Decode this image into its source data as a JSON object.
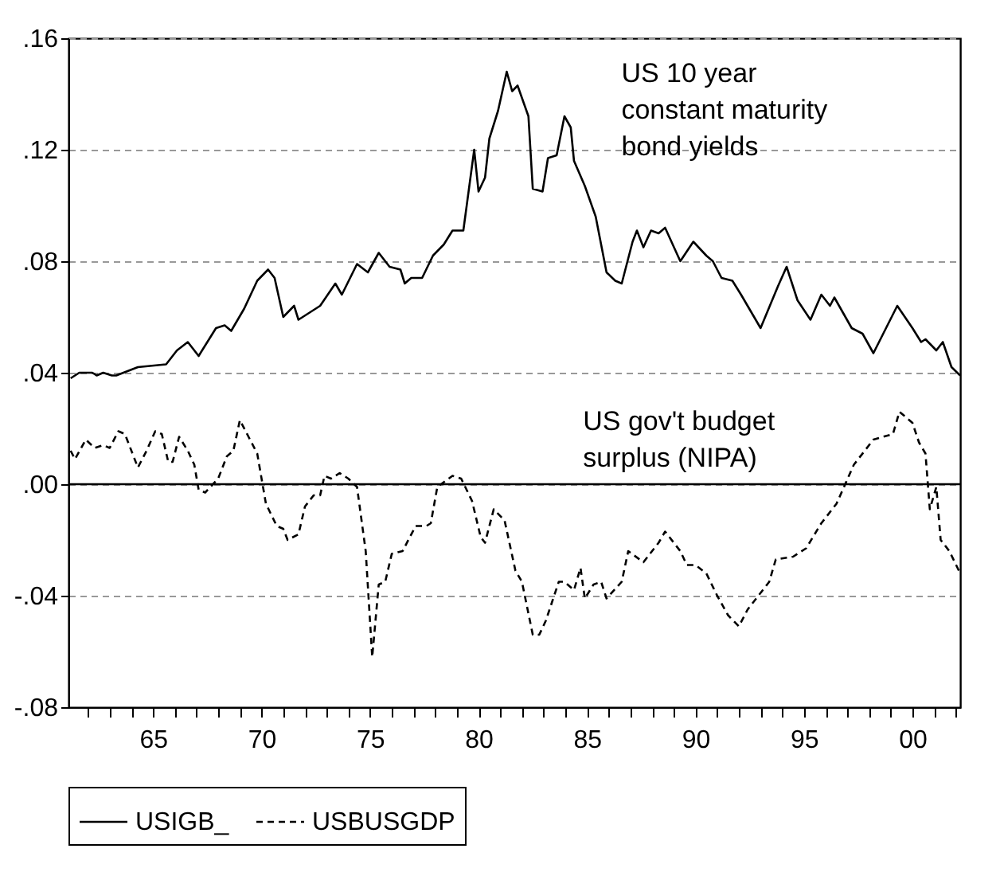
{
  "chart_data": {
    "type": "line",
    "series": [
      {
        "name": "USIGB_",
        "color": "#000000",
        "line_style": "solid",
        "x": [
          1961.2,
          1961.6,
          1962.2,
          1962.4,
          1962.7,
          1963.1,
          1963.3,
          1964.3,
          1965.6,
          1966.1,
          1966.6,
          1967.1,
          1967.9,
          1968.3,
          1968.6,
          1969.2,
          1969.8,
          1970.3,
          1970.6,
          1971.0,
          1971.5,
          1971.7,
          1972.7,
          1973.4,
          1973.7,
          1974.4,
          1974.9,
          1975.4,
          1975.9,
          1976.4,
          1976.6,
          1976.9,
          1977.4,
          1977.9,
          1978.4,
          1978.8,
          1979.3,
          1979.8,
          1980.0,
          1980.3,
          1980.5,
          1980.9,
          1981.3,
          1981.55,
          1981.8,
          1982.3,
          1982.5,
          1982.95,
          1983.2,
          1983.6,
          1983.96,
          1984.25,
          1984.4,
          1984.9,
          1985.4,
          1985.9,
          1986.3,
          1986.6,
          1987.1,
          1987.3,
          1987.6,
          1987.95,
          1988.3,
          1988.6,
          1989.3,
          1989.9,
          1990.5,
          1990.8,
          1991.2,
          1991.7,
          1992.1,
          1993.0,
          1993.8,
          1994.2,
          1994.7,
          1995.3,
          1995.8,
          1996.2,
          1996.4,
          1997.2,
          1997.7,
          1998.2,
          1999.3,
          2000.0,
          2000.4,
          2000.6,
          2001.1,
          2001.4,
          2001.8,
          2002.2
        ],
        "values": [
          0.038,
          0.04,
          0.04,
          0.039,
          0.04,
          0.039,
          0.039,
          0.042,
          0.043,
          0.048,
          0.051,
          0.046,
          0.056,
          0.057,
          0.055,
          0.063,
          0.073,
          0.077,
          0.074,
          0.06,
          0.064,
          0.059,
          0.064,
          0.072,
          0.068,
          0.079,
          0.076,
          0.083,
          0.078,
          0.077,
          0.072,
          0.074,
          0.074,
          0.082,
          0.086,
          0.091,
          0.091,
          0.12,
          0.105,
          0.11,
          0.124,
          0.134,
          0.148,
          0.141,
          0.143,
          0.132,
          0.106,
          0.105,
          0.117,
          0.118,
          0.132,
          0.128,
          0.116,
          0.107,
          0.096,
          0.076,
          0.073,
          0.072,
          0.087,
          0.091,
          0.085,
          0.091,
          0.09,
          0.092,
          0.08,
          0.087,
          0.082,
          0.08,
          0.074,
          0.073,
          0.068,
          0.056,
          0.071,
          0.078,
          0.066,
          0.059,
          0.068,
          0.064,
          0.067,
          0.056,
          0.054,
          0.047,
          0.064,
          0.056,
          0.051,
          0.052,
          0.048,
          0.051,
          0.042,
          0.039
        ]
      },
      {
        "name": "USBUSGDP",
        "color": "#000000",
        "line_style": "dashed",
        "x": [
          1961.2,
          1961.4,
          1961.9,
          1962.3,
          1962.7,
          1963.0,
          1963.4,
          1963.7,
          1964.3,
          1964.7,
          1965.1,
          1965.4,
          1965.7,
          1965.9,
          1966.2,
          1966.6,
          1966.9,
          1967.1,
          1967.4,
          1968.0,
          1968.4,
          1968.7,
          1969.0,
          1969.4,
          1969.8,
          1970.2,
          1970.7,
          1971.0,
          1971.2,
          1971.7,
          1972.0,
          1972.4,
          1972.7,
          1972.9,
          1973.2,
          1973.6,
          1974.0,
          1974.4,
          1974.8,
          1975.1,
          1975.4,
          1975.7,
          1976.0,
          1976.5,
          1977.1,
          1977.6,
          1977.8,
          1978.1,
          1978.8,
          1979.2,
          1979.7,
          1980.1,
          1980.3,
          1980.7,
          1981.2,
          1981.7,
          1982.0,
          1982.5,
          1982.8,
          1983.1,
          1983.7,
          1983.96,
          1984.4,
          1984.7,
          1984.9,
          1985.3,
          1985.65,
          1985.9,
          1986.6,
          1986.9,
          1987.6,
          1988.3,
          1988.6,
          1989.3,
          1989.6,
          1990.0,
          1990.5,
          1991.0,
          1991.5,
          1992.0,
          1992.4,
          1992.8,
          1993.4,
          1993.7,
          1994.5,
          1995.1,
          1995.8,
          1996.5,
          1997.3,
          1998.2,
          1999.1,
          1999.4,
          2000.0,
          2000.3,
          2000.6,
          2000.8,
          2001.1,
          2001.3,
          2001.7,
          2002.2
        ],
        "values": [
          0.012,
          0.009,
          0.016,
          0.013,
          0.014,
          0.013,
          0.019,
          0.018,
          0.006,
          0.012,
          0.019,
          0.018,
          0.008,
          0.008,
          0.017,
          0.012,
          0.007,
          -0.002,
          -0.003,
          0.002,
          0.01,
          0.012,
          0.023,
          0.017,
          0.011,
          -0.007,
          -0.015,
          -0.016,
          -0.02,
          -0.018,
          -0.008,
          -0.004,
          -0.004,
          0.003,
          0.002,
          0.004,
          0.002,
          -0.001,
          -0.024,
          -0.062,
          -0.036,
          -0.035,
          -0.025,
          -0.024,
          -0.015,
          -0.015,
          -0.014,
          -0.001,
          0.003,
          0.002,
          -0.006,
          -0.019,
          -0.021,
          -0.009,
          -0.013,
          -0.031,
          -0.035,
          -0.054,
          -0.054,
          -0.049,
          -0.035,
          -0.035,
          -0.038,
          -0.03,
          -0.041,
          -0.036,
          -0.035,
          -0.041,
          -0.035,
          -0.024,
          -0.028,
          -0.021,
          -0.017,
          -0.024,
          -0.029,
          -0.029,
          -0.032,
          -0.04,
          -0.047,
          -0.051,
          -0.045,
          -0.041,
          -0.035,
          -0.027,
          -0.026,
          -0.023,
          -0.014,
          -0.007,
          0.007,
          0.016,
          0.018,
          0.026,
          0.022,
          0.015,
          0.011,
          -0.009,
          -0.001,
          -0.02,
          -0.024,
          -0.032
        ]
      }
    ],
    "xlim": [
      1961.1,
      2002.2
    ],
    "xticks": [
      {
        "value": 1962,
        "label": null
      },
      {
        "value": 1963,
        "label": null
      },
      {
        "value": 1964,
        "label": null
      },
      {
        "value": 1965,
        "label": "65"
      },
      {
        "value": 1966,
        "label": null
      },
      {
        "value": 1967,
        "label": null
      },
      {
        "value": 1968,
        "label": null
      },
      {
        "value": 1969,
        "label": null
      },
      {
        "value": 1970,
        "label": "70"
      },
      {
        "value": 1971,
        "label": null
      },
      {
        "value": 1972,
        "label": null
      },
      {
        "value": 1973,
        "label": null
      },
      {
        "value": 1974,
        "label": null
      },
      {
        "value": 1975,
        "label": "75"
      },
      {
        "value": 1976,
        "label": null
      },
      {
        "value": 1977,
        "label": null
      },
      {
        "value": 1978,
        "label": null
      },
      {
        "value": 1979,
        "label": null
      },
      {
        "value": 1980,
        "label": "80"
      },
      {
        "value": 1981,
        "label": null
      },
      {
        "value": 1982,
        "label": null
      },
      {
        "value": 1983,
        "label": null
      },
      {
        "value": 1984,
        "label": null
      },
      {
        "value": 1985,
        "label": "85"
      },
      {
        "value": 1986,
        "label": null
      },
      {
        "value": 1987,
        "label": null
      },
      {
        "value": 1988,
        "label": null
      },
      {
        "value": 1989,
        "label": null
      },
      {
        "value": 1990,
        "label": "90"
      },
      {
        "value": 1991,
        "label": null
      },
      {
        "value": 1992,
        "label": null
      },
      {
        "value": 1993,
        "label": null
      },
      {
        "value": 1994,
        "label": null
      },
      {
        "value": 1995,
        "label": "95"
      },
      {
        "value": 1996,
        "label": null
      },
      {
        "value": 1997,
        "label": null
      },
      {
        "value": 1998,
        "label": null
      },
      {
        "value": 1999,
        "label": null
      },
      {
        "value": 2000,
        "label": "00"
      },
      {
        "value": 2001,
        "label": null
      },
      {
        "value": 2002,
        "label": null
      }
    ],
    "ylim": [
      -0.08,
      0.16
    ],
    "yticks": [
      {
        "value": -0.08,
        "label": "-.08"
      },
      {
        "value": -0.04,
        "label": "-.04"
      },
      {
        "value": 0,
        "label": ".00"
      },
      {
        "value": 0.04,
        "label": ".04"
      },
      {
        "value": 0.08,
        "label": ".08"
      },
      {
        "value": 0.12,
        "label": ".12"
      },
      {
        "value": 0.16,
        "label": ".16"
      }
    ],
    "grid": "y",
    "ref_lines": [
      {
        "axis": "y",
        "value": 0,
        "color": "#000000"
      }
    ],
    "annotations": [
      "US 10 year\nconstant maturity\nbond yields",
      "US gov't budget\nsurplus (NIPA)"
    ],
    "legend": "bottom"
  }
}
